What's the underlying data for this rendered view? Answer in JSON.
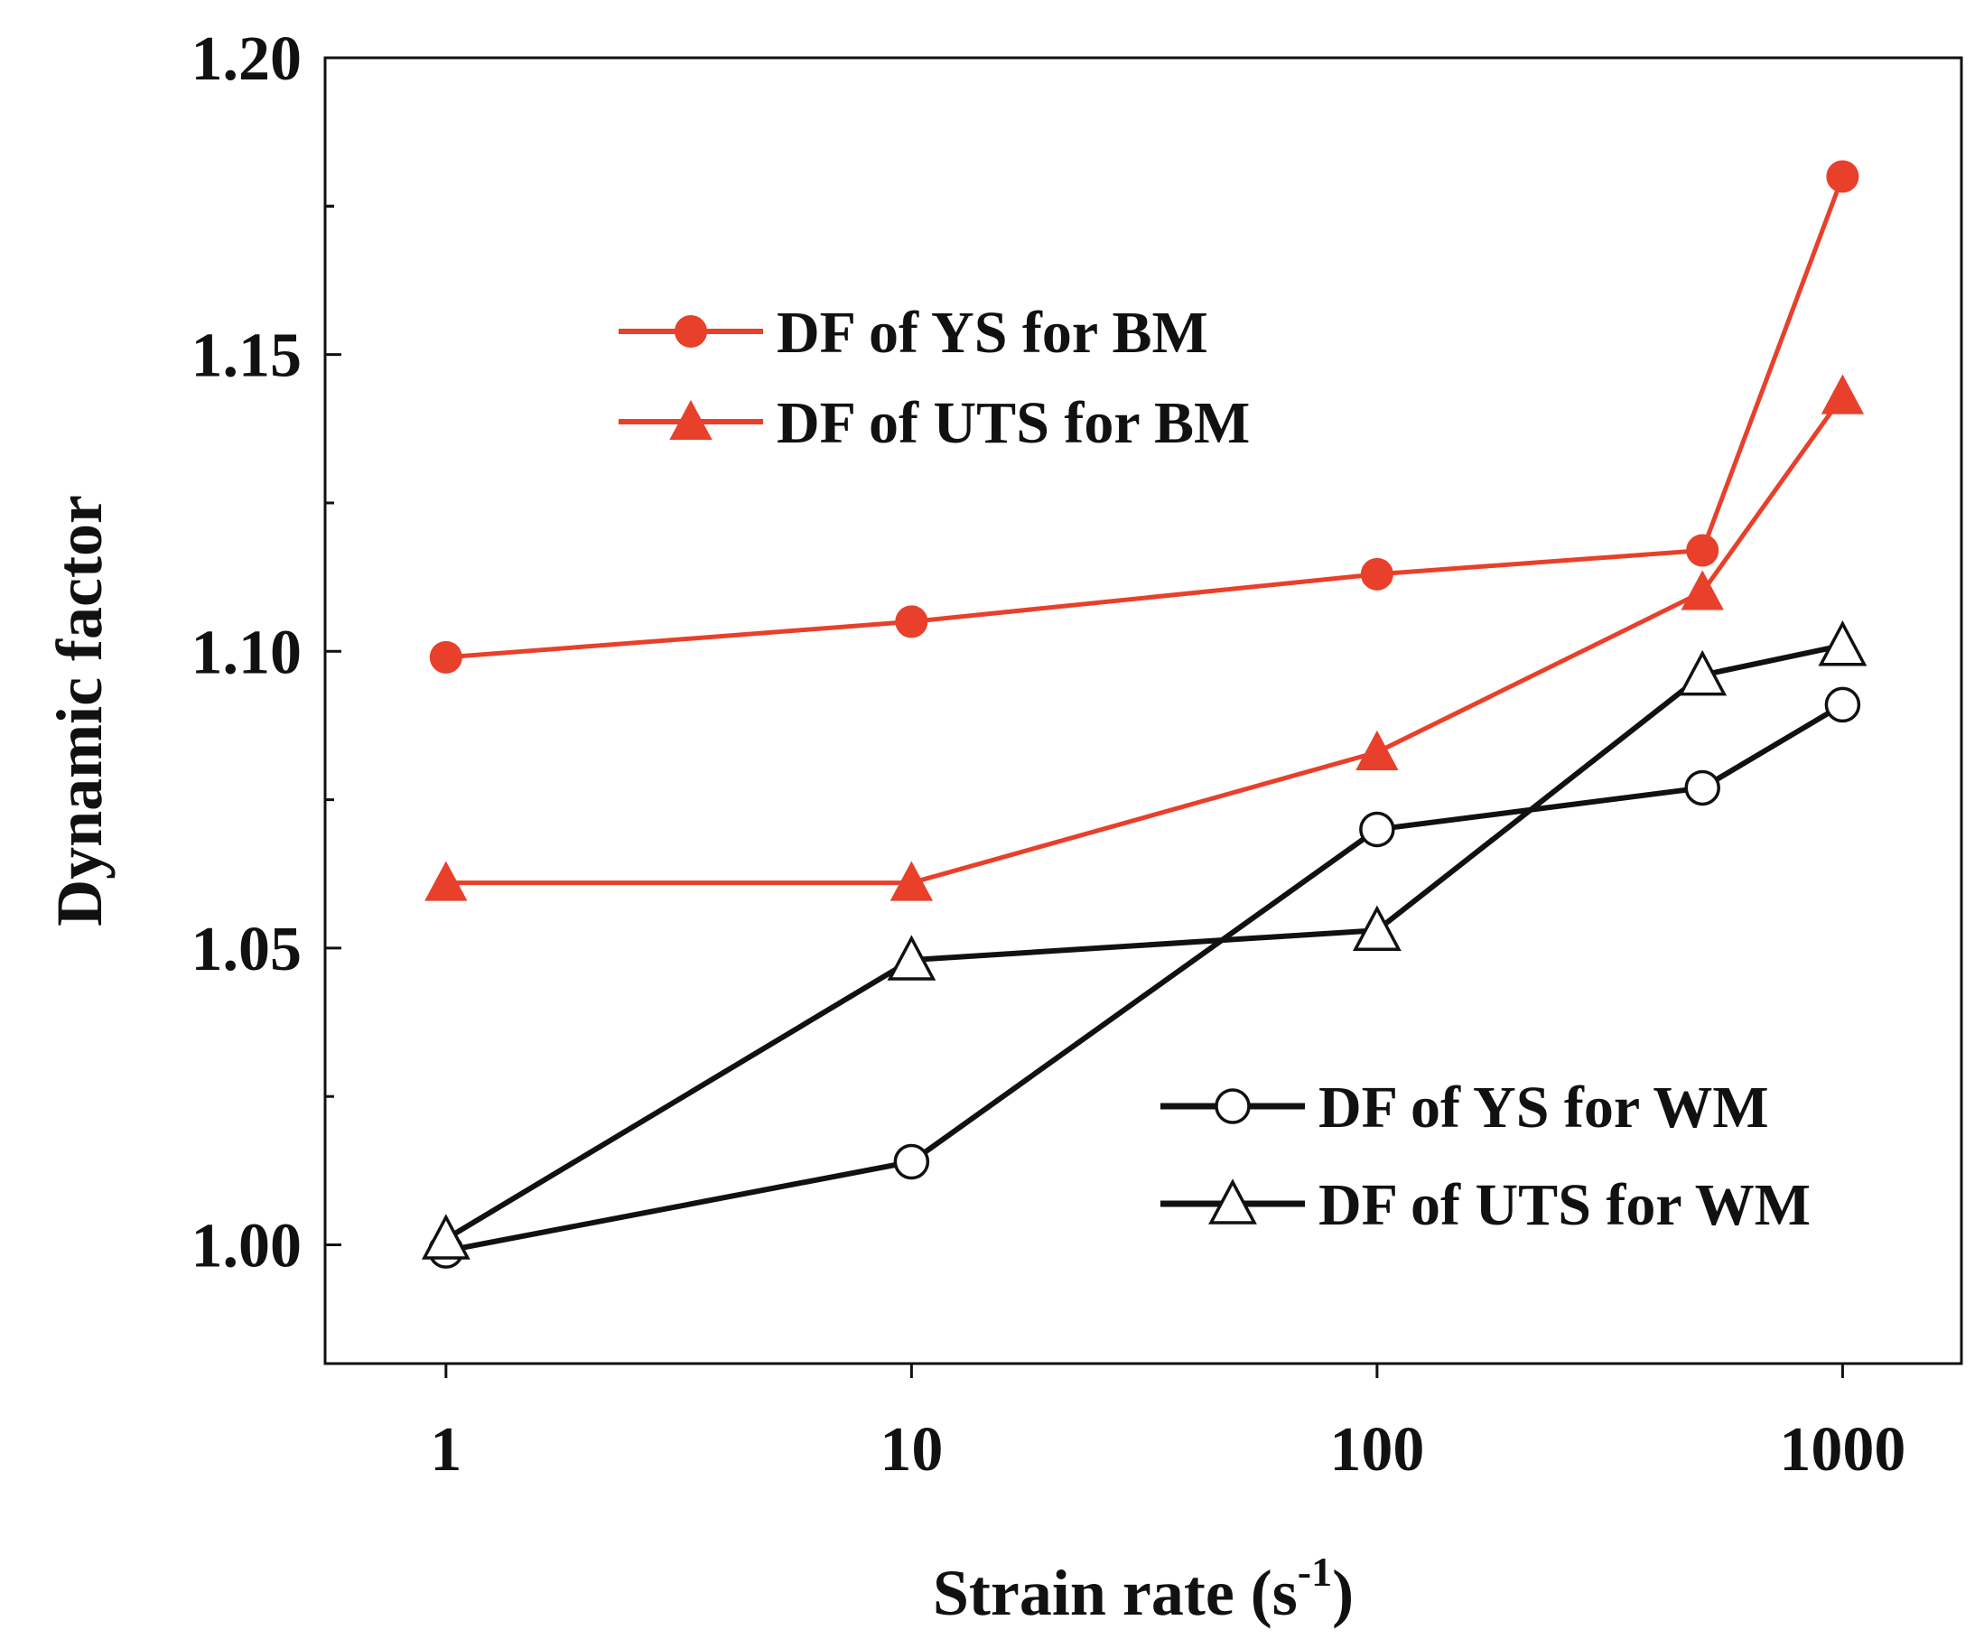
{
  "chart_data": {
    "type": "line",
    "title": "",
    "xlabel": "Strain rate (s",
    "xlabel_superscript": "-1",
    "xlabel_close": ")",
    "ylabel": "Dynamic factor",
    "xscale": "log",
    "xlim": [
      0.55,
      1800
    ],
    "ylim": [
      0.98,
      1.2
    ],
    "x_ticks": [
      1,
      10,
      100,
      1000
    ],
    "x_tick_labels": [
      "1",
      "10",
      "100",
      "1000"
    ],
    "y_ticks": [
      1.0,
      1.05,
      1.1,
      1.15,
      1.2
    ],
    "y_tick_labels": [
      "1.00",
      "1.05",
      "1.10",
      "1.15",
      "1.20"
    ],
    "x": [
      1,
      10,
      100,
      500,
      1000
    ],
    "series": [
      {
        "name": "DF of YS for BM",
        "marker": "circle",
        "filled": true,
        "color": "#e8402a",
        "values": [
          1.099,
          1.105,
          1.113,
          1.117,
          1.18
        ]
      },
      {
        "name": "DF of UTS for BM",
        "marker": "triangle",
        "filled": true,
        "color": "#e8402a",
        "values": [
          1.061,
          1.061,
          1.083,
          1.11,
          1.143
        ]
      },
      {
        "name": "DF of YS for WM",
        "marker": "circle",
        "filled": false,
        "color": "#111111",
        "values": [
          0.999,
          1.014,
          1.07,
          1.077,
          1.091
        ]
      },
      {
        "name": "DF of UTS for WM",
        "marker": "triangle",
        "filled": false,
        "color": "#111111",
        "values": [
          1.001,
          1.048,
          1.053,
          1.096,
          1.101
        ]
      }
    ],
    "legends": [
      {
        "position": "upper-left",
        "entries": [
          "DF of YS for BM",
          "DF of UTS for BM"
        ]
      },
      {
        "position": "lower-right",
        "entries": [
          "DF of YS for WM",
          "DF of UTS for WM"
        ]
      }
    ],
    "grid": false
  }
}
